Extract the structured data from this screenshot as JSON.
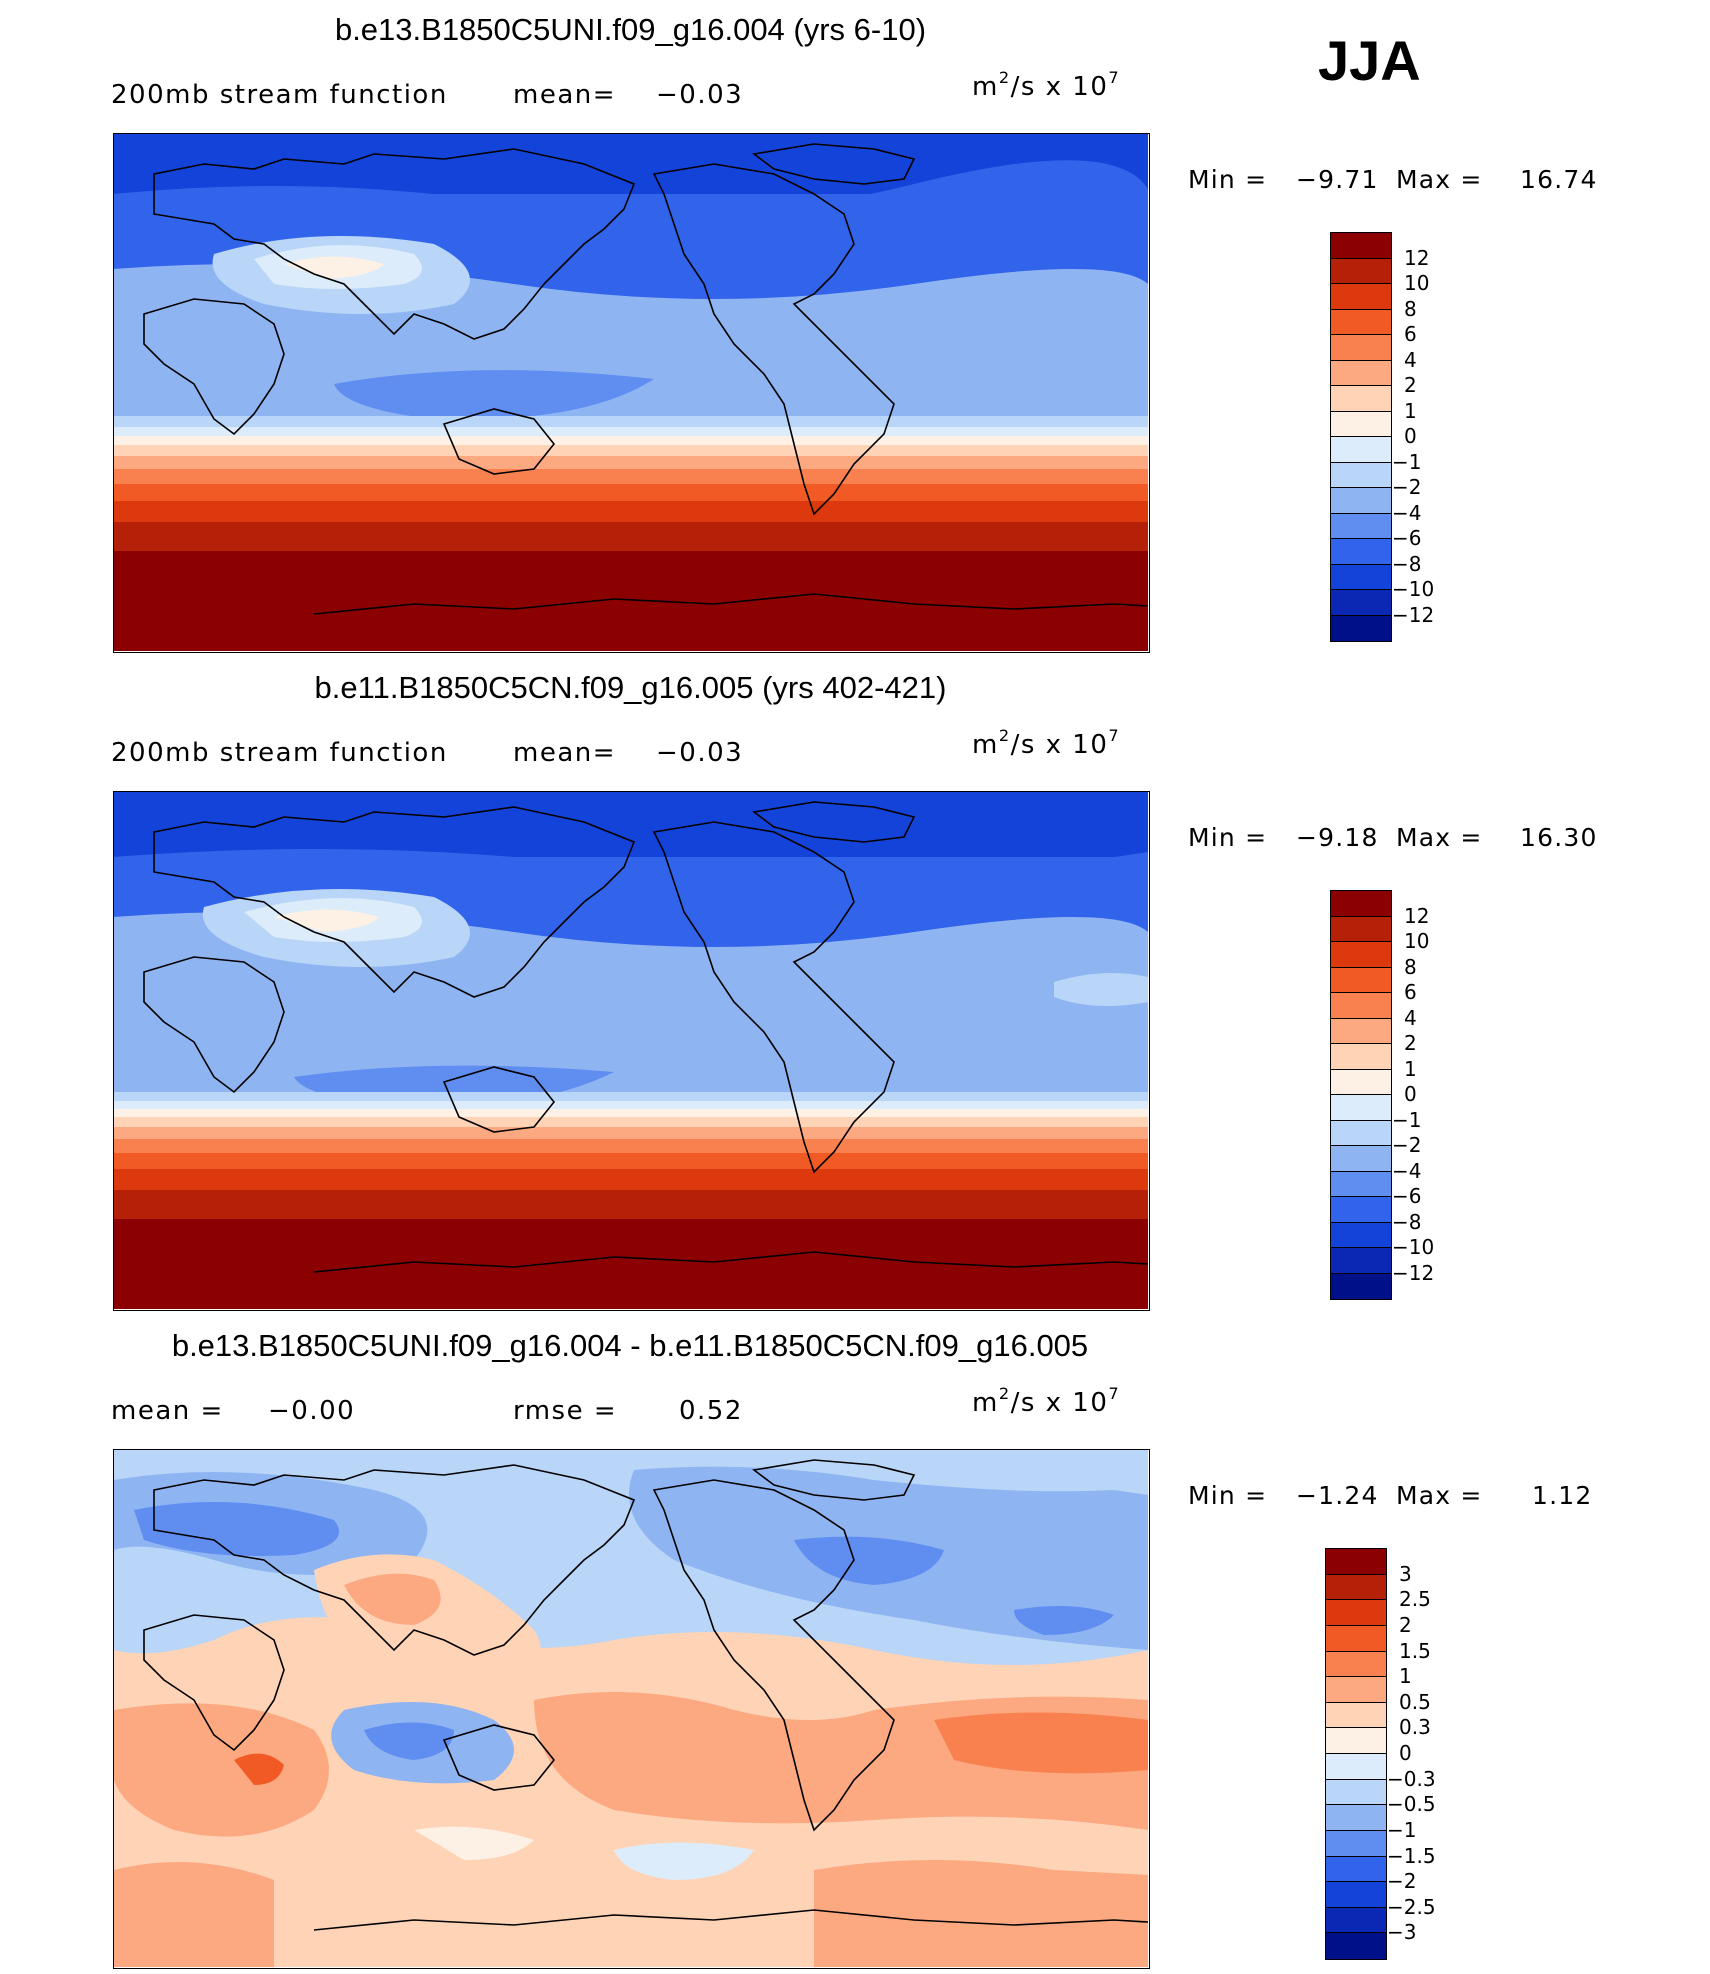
{
  "season": "JJA",
  "units_text": "m²/s x 10⁷",
  "panels": [
    {
      "title": "b.e13.B1850C5UNI.f09_g16.004 (yrs 6-10)",
      "subtitle_left": "200mb stream function",
      "subtitle_mid": "mean=",
      "subtitle_mid_value": "−0.03",
      "units_base": "m",
      "units_exp": "2",
      "units_mid": "/s x 10",
      "units_exp2": "7",
      "min_label": "Min =",
      "min_value": "−9.71",
      "max_label": "Max =",
      "max_value": "16.74",
      "colorbar_labels": [
        "12",
        "10",
        "8",
        "6",
        "4",
        "2",
        "1",
        "0",
        "−1",
        "−2",
        "−4",
        "−6",
        "−8",
        "−10",
        "−12"
      ],
      "colors": [
        "#8b0000",
        "#b52008",
        "#dc3a0e",
        "#f15a24",
        "#f9814f",
        "#fca982",
        "#fed3b6",
        "#fdf0e4",
        "#dcecfa",
        "#b9d5f7",
        "#8fb4f2",
        "#5f8ef0",
        "#3164ea",
        "#1343d8",
        "#0a28b4",
        "#001088"
      ]
    },
    {
      "title": "b.e11.B1850C5CN.f09_g16.005 (yrs 402-421)",
      "subtitle_left": "200mb stream function",
      "subtitle_mid": "mean=",
      "subtitle_mid_value": "−0.03",
      "units_base": "m",
      "units_exp": "2",
      "units_mid": "/s x 10",
      "units_exp2": "7",
      "min_label": "Min =",
      "min_value": "−9.18",
      "max_label": "Max =",
      "max_value": "16.30",
      "colorbar_labels": [
        "12",
        "10",
        "8",
        "6",
        "4",
        "2",
        "1",
        "0",
        "−1",
        "−2",
        "−4",
        "−6",
        "−8",
        "−10",
        "−12"
      ],
      "colors": [
        "#8b0000",
        "#b52008",
        "#dc3a0e",
        "#f15a24",
        "#f9814f",
        "#fca982",
        "#fed3b6",
        "#fdf0e4",
        "#dcecfa",
        "#b9d5f7",
        "#8fb4f2",
        "#5f8ef0",
        "#3164ea",
        "#1343d8",
        "#0a28b4",
        "#001088"
      ]
    },
    {
      "title": "b.e13.B1850C5UNI.f09_g16.004 - b.e11.B1850C5CN.f09_g16.005",
      "subtitle_left": "mean =",
      "subtitle_left_value": "−0.00",
      "subtitle_mid": "rmse =",
      "subtitle_mid_value": "0.52",
      "units_base": "m",
      "units_exp": "2",
      "units_mid": "/s x 10",
      "units_exp2": "7",
      "min_label": "Min =",
      "min_value": "−1.24",
      "max_label": "Max =",
      "max_value": "1.12",
      "colorbar_labels": [
        "3",
        "2.5",
        "2",
        "1.5",
        "1",
        "0.5",
        "0.3",
        "0",
        "−0.3",
        "−0.5",
        "−1",
        "−1.5",
        "−2",
        "−2.5",
        "−3"
      ],
      "colors": [
        "#8b0000",
        "#b52008",
        "#dc3a0e",
        "#f15a24",
        "#f9814f",
        "#fca982",
        "#fed3b6",
        "#fdf0e4",
        "#dcecfa",
        "#b9d5f7",
        "#8fb4f2",
        "#5f8ef0",
        "#3164ea",
        "#1343d8",
        "#0a28b4",
        "#001088"
      ]
    }
  ]
}
